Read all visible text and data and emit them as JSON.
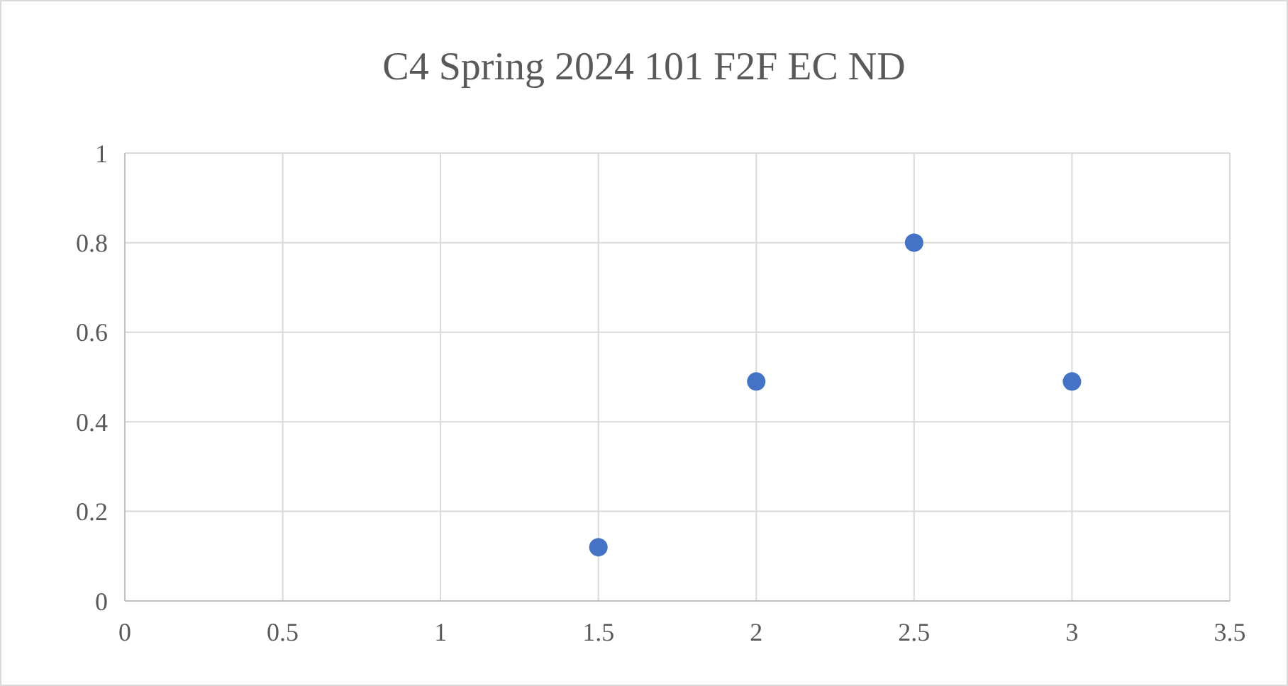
{
  "chart_data": {
    "type": "scatter",
    "title": "C4 Spring 2024 101 F2F EC ND",
    "x": [
      1.5,
      2,
      2.5,
      3
    ],
    "series": [
      {
        "color": "#4472c4",
        "values": [
          0.12,
          0.49,
          0.8,
          0.49
        ]
      }
    ],
    "xlim": [
      0,
      3.5
    ],
    "xticks": [
      0,
      0.5,
      1,
      1.5,
      2,
      2.5,
      3,
      3.5
    ],
    "ylim": [
      0,
      1
    ],
    "yticks": [
      0,
      0.2,
      0.4,
      0.6,
      0.8,
      1
    ],
    "grid": true,
    "marker": "circle"
  }
}
